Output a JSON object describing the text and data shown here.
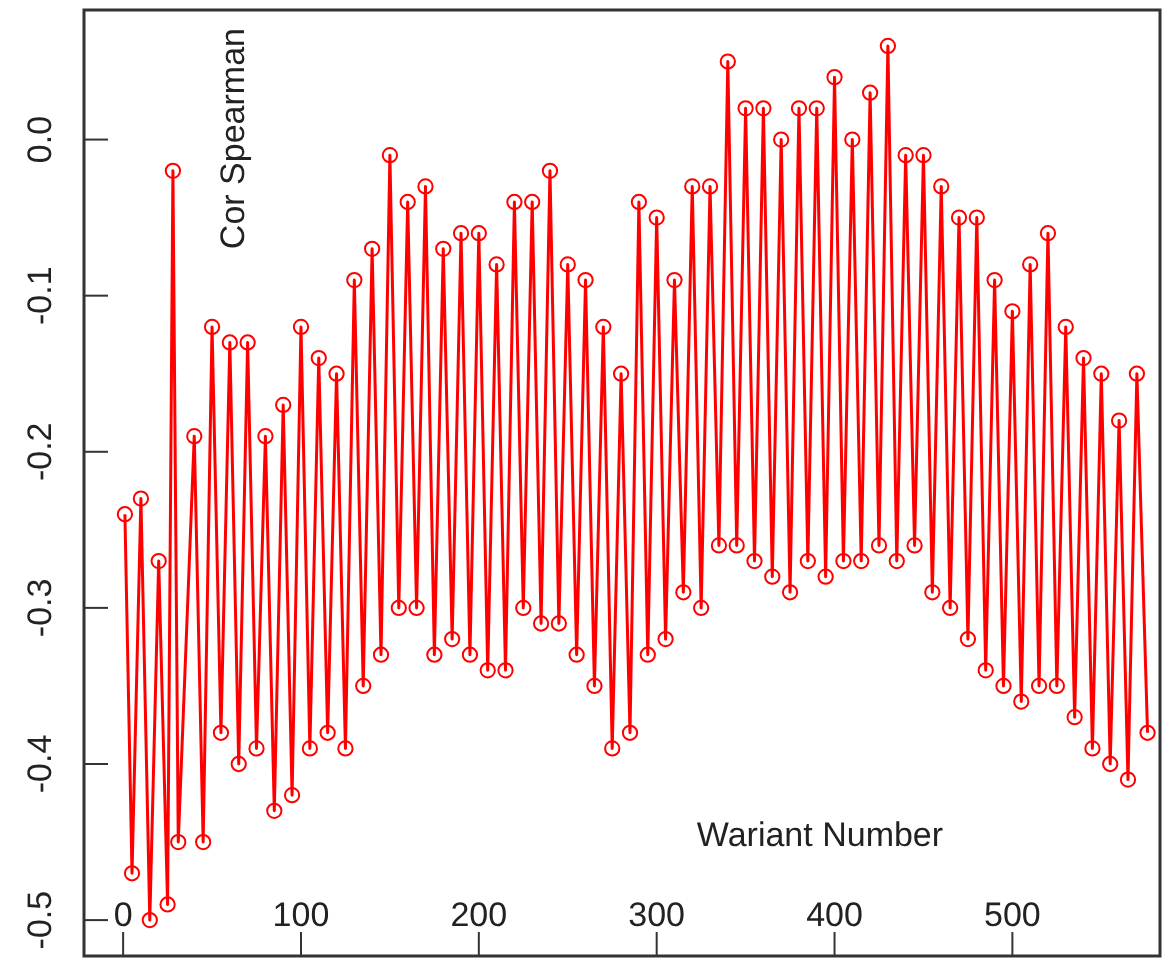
{
  "chart_data": {
    "type": "line",
    "xlabel": "Wariant Number",
    "ylabel": "Cor Spearman",
    "marker": "circle",
    "line_style": "solid",
    "grid": false,
    "xlim": [
      -22,
      583
    ],
    "ylim": [
      -0.523,
      0.083
    ],
    "xticks": [
      0,
      100,
      200,
      300,
      400,
      500
    ],
    "yticks": [
      {
        "value": 0,
        "label": "0.0"
      },
      -0.1,
      -0.2,
      -0.3,
      -0.4,
      -0.5
    ],
    "x": [
      1,
      5,
      10,
      15,
      20,
      25,
      28,
      31,
      40,
      45,
      50,
      55,
      60,
      65,
      70,
      75,
      80,
      85,
      90,
      95,
      100,
      105,
      110,
      115,
      120,
      125,
      130,
      135,
      140,
      145,
      150,
      155,
      160,
      165,
      170,
      175,
      180,
      185,
      190,
      195,
      200,
      205,
      210,
      215,
      220,
      225,
      230,
      235,
      240,
      245,
      250,
      255,
      260,
      265,
      270,
      275,
      280,
      285,
      290,
      295,
      300,
      305,
      310,
      315,
      320,
      325,
      330,
      335,
      340,
      345,
      350,
      355,
      360,
      365,
      370,
      375,
      380,
      385,
      390,
      395,
      400,
      405,
      410,
      415,
      420,
      425,
      430,
      435,
      440,
      445,
      450,
      455,
      460,
      465,
      470,
      475,
      480,
      485,
      490,
      495,
      500,
      505,
      510,
      515,
      520,
      525,
      530,
      535,
      540,
      545,
      550,
      555,
      560,
      565,
      570,
      576
    ],
    "series": [
      {
        "color": "#ff0000",
        "values": [
          -0.24,
          -0.47,
          -0.23,
          -0.5,
          -0.27,
          -0.49,
          -0.02,
          -0.45,
          -0.19,
          -0.45,
          -0.12,
          -0.38,
          -0.13,
          -0.4,
          -0.13,
          -0.39,
          -0.19,
          -0.43,
          -0.17,
          -0.42,
          -0.12,
          -0.39,
          -0.14,
          -0.38,
          -0.15,
          -0.39,
          -0.09,
          -0.35,
          -0.07,
          -0.33,
          -0.01,
          -0.3,
          -0.04,
          -0.3,
          -0.03,
          -0.33,
          -0.07,
          -0.32,
          -0.06,
          -0.33,
          -0.06,
          -0.34,
          -0.08,
          -0.34,
          -0.04,
          -0.3,
          -0.04,
          -0.31,
          -0.02,
          -0.31,
          -0.08,
          -0.33,
          -0.09,
          -0.35,
          -0.12,
          -0.39,
          -0.15,
          -0.38,
          -0.04,
          -0.33,
          -0.05,
          -0.32,
          -0.09,
          -0.29,
          -0.03,
          -0.3,
          -0.03,
          -0.26,
          0.05,
          -0.26,
          0.02,
          -0.27,
          0.02,
          -0.28,
          0.0,
          -0.29,
          0.02,
          -0.27,
          0.02,
          -0.28,
          0.04,
          -0.27,
          0.0,
          -0.27,
          0.03,
          -0.26,
          0.06,
          -0.27,
          -0.01,
          -0.26,
          -0.01,
          -0.29,
          -0.03,
          -0.3,
          -0.05,
          -0.32,
          -0.05,
          -0.34,
          -0.09,
          -0.35,
          -0.11,
          -0.36,
          -0.08,
          -0.35,
          -0.06,
          -0.35,
          -0.12,
          -0.37,
          -0.14,
          -0.39,
          -0.15,
          -0.4,
          -0.18,
          -0.41,
          -0.15,
          -0.38
        ]
      }
    ]
  }
}
